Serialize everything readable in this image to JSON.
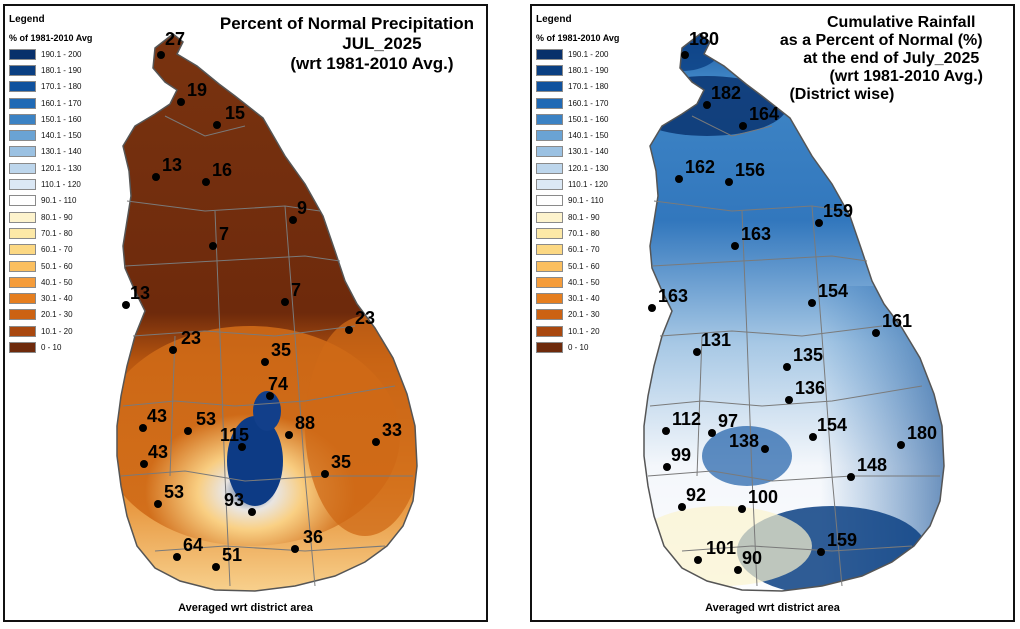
{
  "legend": {
    "title": "Legend",
    "subtitle": "% of 1981-2010 Avg",
    "classes": [
      {
        "label": "190.1 - 200",
        "color": "#08306b"
      },
      {
        "label": "180.1 - 190",
        "color": "#0a3f82"
      },
      {
        "label": "170.1 - 180",
        "color": "#10529e"
      },
      {
        "label": "160.1 - 170",
        "color": "#1f69b5"
      },
      {
        "label": "150.1 - 160",
        "color": "#3b82c4"
      },
      {
        "label": "140.1 - 150",
        "color": "#6aa3d4"
      },
      {
        "label": "130.1 - 140",
        "color": "#9bc1e2"
      },
      {
        "label": "120.1 - 130",
        "color": "#bdd6ec"
      },
      {
        "label": "110.1 - 120",
        "color": "#dbe8f5"
      },
      {
        "label": "90.1 - 110",
        "color": "#ffffff"
      },
      {
        "label": "80.1 - 90",
        "color": "#fdf3cd"
      },
      {
        "label": "70.1 - 80",
        "color": "#fde9a7"
      },
      {
        "label": "60.1 - 70",
        "color": "#fcd883"
      },
      {
        "label": "50.1 - 60",
        "color": "#fbbf5f"
      },
      {
        "label": "40.1 - 50",
        "color": "#f59c3a"
      },
      {
        "label": "30.1 - 40",
        "color": "#e57e1f"
      },
      {
        "label": "20.1 - 30",
        "color": "#cc6212"
      },
      {
        "label": "10.1 - 20",
        "color": "#a9480f"
      },
      {
        "label": "0 - 10",
        "color": "#6e2a0c"
      }
    ]
  },
  "maps": [
    {
      "title_lines": [
        "Percent of Normal Precipitation",
        "JUL_2025",
        "(wrt 1981-2010 Avg.)"
      ],
      "footer": "Averaged wrt district area",
      "district_values": [
        "27",
        "19",
        "15",
        "13",
        "16",
        "9",
        "7",
        "13",
        "7",
        "23",
        "23",
        "35",
        "74",
        "43",
        "53",
        "88",
        "115",
        "43",
        "35",
        "33",
        "53",
        "93",
        "64",
        "51",
        "36"
      ]
    },
    {
      "title_lines": [
        "Cumulative Rainfall",
        "as a Percent of Normal (%)",
        "at the end of July_2025",
        "(wrt 1981-2010 Avg.)",
        "(District wise)"
      ],
      "footer": "Averaged wrt district area",
      "district_values": [
        "180",
        "182",
        "164",
        "162",
        "156",
        "159",
        "163",
        "163",
        "154",
        "161",
        "131",
        "135",
        "136",
        "112",
        "97",
        "154",
        "180",
        "138",
        "99",
        "148",
        "92",
        "100",
        "159",
        "101",
        "90"
      ]
    }
  ]
}
